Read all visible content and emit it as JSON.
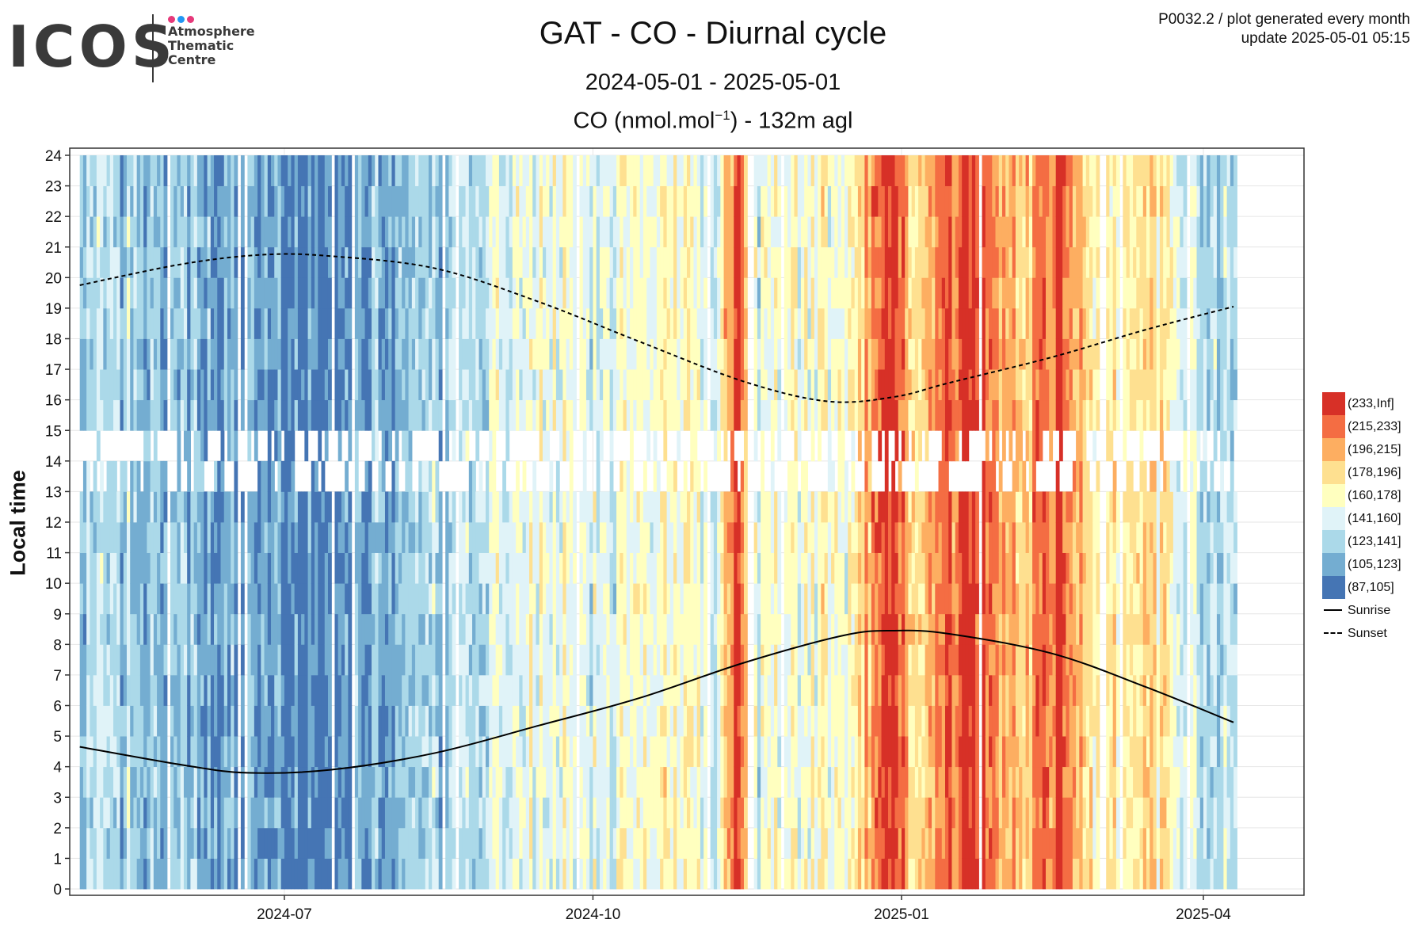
{
  "logo": {
    "wordmark": "ICOS",
    "lines": [
      "Atmosphere",
      "Thematic",
      "Centre"
    ],
    "dot_colors": [
      "#e6397a",
      "#2196f3",
      "#e6397a"
    ]
  },
  "header": {
    "title": "GAT - CO - Diurnal cycle",
    "period": "2024-05-01 - 2025-05-01",
    "unit_prefix": "CO (nmol.mol",
    "unit_sup": "−1",
    "unit_suffix": ") - 132m agl",
    "info_line1": "P0032.2 / plot generated every month",
    "info_line2": "update  2025-05-01 05:15"
  },
  "chart_data": {
    "type": "heatmap",
    "title": "GAT - CO - Diurnal cycle",
    "xlabel": "",
    "ylabel": "Local time",
    "x_start_date": "2024-05-01",
    "x_end_date": "2025-04-10",
    "xlim": [
      "2024-04-28",
      "2025-05-01"
    ],
    "ylim": [
      0,
      24
    ],
    "x_ticks": [
      "2024-07",
      "2024-10",
      "2025-01",
      "2025-04"
    ],
    "x_tick_dates": [
      "2024-07-01",
      "2024-10-01",
      "2025-01-01",
      "2025-04-01"
    ],
    "y_ticks": [
      0,
      1,
      2,
      3,
      4,
      5,
      6,
      7,
      8,
      9,
      10,
      11,
      12,
      13,
      14,
      15,
      16,
      17,
      18,
      19,
      20,
      21,
      22,
      23,
      24
    ],
    "grid": true,
    "legend_position": "right",
    "missing_hours": [
      13,
      14
    ],
    "bins": [
      {
        "label": "(233,Inf]",
        "color": "#d73027"
      },
      {
        "label": "(215,233]",
        "color": "#f46d43"
      },
      {
        "label": "(196,215]",
        "color": "#fdae61"
      },
      {
        "label": "(178,196]",
        "color": "#fee090"
      },
      {
        "label": "(160,178]",
        "color": "#ffffbf"
      },
      {
        "label": "(141,160]",
        "color": "#e0f3f8"
      },
      {
        "label": "(123,141]",
        "color": "#abd9e9"
      },
      {
        "label": "(105,123]",
        "color": "#74add1"
      },
      {
        "label": "(87,105]",
        "color": "#4575b4"
      }
    ],
    "daily_level_profile": [
      {
        "date": "2024-05-01",
        "bin": "(123,141]"
      },
      {
        "date": "2024-05-20",
        "bin": "(123,141]"
      },
      {
        "date": "2024-06-10",
        "bin": "(105,123]"
      },
      {
        "date": "2024-06-25",
        "bin": "(105,123]"
      },
      {
        "date": "2024-07-05",
        "bin": "(87,105]"
      },
      {
        "date": "2024-07-25",
        "bin": "(105,123]"
      },
      {
        "date": "2024-08-15",
        "bin": "(123,141]"
      },
      {
        "date": "2024-09-01",
        "bin": "(141,160]"
      },
      {
        "date": "2024-09-15",
        "bin": "(160,178]"
      },
      {
        "date": "2024-10-01",
        "bin": "(141,160]"
      },
      {
        "date": "2024-10-20",
        "bin": "(160,178]"
      },
      {
        "date": "2024-11-06",
        "bin": "(141,160]"
      },
      {
        "date": "2024-11-12",
        "bin": "(233,Inf]"
      },
      {
        "date": "2024-11-18",
        "bin": "(141,160]"
      },
      {
        "date": "2024-12-15",
        "bin": "(160,178]"
      },
      {
        "date": "2024-12-28",
        "bin": "(233,Inf]"
      },
      {
        "date": "2025-01-05",
        "bin": "(178,196]"
      },
      {
        "date": "2025-01-20",
        "bin": "(233,Inf]"
      },
      {
        "date": "2025-02-05",
        "bin": "(178,196]"
      },
      {
        "date": "2025-02-17",
        "bin": "(233,Inf]"
      },
      {
        "date": "2025-03-01",
        "bin": "(160,178]"
      },
      {
        "date": "2025-03-15",
        "bin": "(178,196]"
      },
      {
        "date": "2025-04-01",
        "bin": "(123,141]"
      },
      {
        "date": "2025-04-10",
        "bin": "(123,141]"
      }
    ],
    "series": [
      {
        "name": "Sunrise",
        "style": "solid",
        "x": [
          "2024-05-01",
          "2024-06-01",
          "2024-06-20",
          "2024-07-15",
          "2024-08-15",
          "2024-09-15",
          "2024-10-15",
          "2024-11-15",
          "2024-12-15",
          "2024-12-30",
          "2025-01-15",
          "2025-02-15",
          "2025-03-15",
          "2025-04-10"
        ],
        "y": [
          4.65,
          4.05,
          3.8,
          3.9,
          4.45,
          5.35,
          6.25,
          7.4,
          8.3,
          8.45,
          8.35,
          7.7,
          6.6,
          5.45
        ]
      },
      {
        "name": "Sunset",
        "style": "dashed",
        "x": [
          "2024-05-01",
          "2024-06-01",
          "2024-06-25",
          "2024-07-15",
          "2024-08-15",
          "2024-09-15",
          "2024-10-15",
          "2024-11-15",
          "2024-12-10",
          "2024-12-30",
          "2025-01-15",
          "2025-02-15",
          "2025-03-15",
          "2025-04-10"
        ],
        "y": [
          19.75,
          20.45,
          20.75,
          20.7,
          20.3,
          19.2,
          17.9,
          16.6,
          15.95,
          16.1,
          16.55,
          17.4,
          18.3,
          19.05
        ]
      }
    ]
  }
}
